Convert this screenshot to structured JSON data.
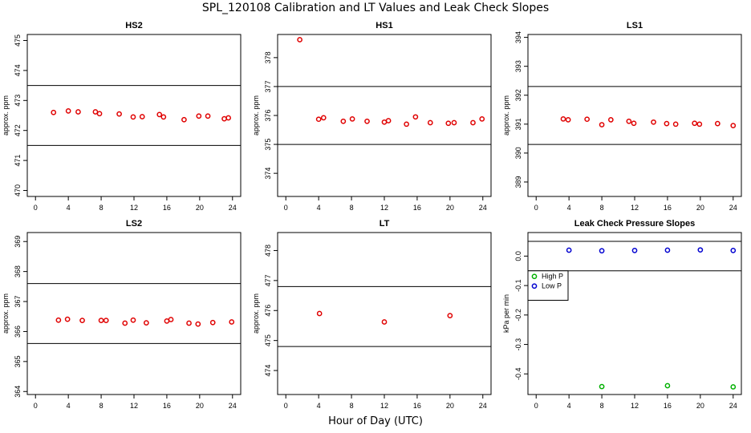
{
  "figure": {
    "title": "SPL_120108  Calibration and LT Values and Leak Check Slopes",
    "xlabel": "Hour of Day (UTC)"
  },
  "colors": {
    "red": "#e00000",
    "green": "#00b000",
    "blue": "#0000d0",
    "axis": "#000000"
  },
  "chart_data": [
    {
      "type": "scatter",
      "title": "HS2",
      "ylabel": "approx. ppm",
      "xlim": [
        -1,
        25
      ],
      "ylim": [
        469.8,
        475.2
      ],
      "xticks": [
        0,
        4,
        8,
        12,
        16,
        20,
        24
      ],
      "yticks": [
        470,
        471,
        472,
        473,
        474,
        475
      ],
      "hlines": [
        473.5,
        471.5
      ],
      "series": [
        {
          "color": "red",
          "x": [
            2.2,
            4.0,
            5.2,
            7.3,
            7.8,
            10.2,
            11.9,
            13.0,
            15.1,
            15.6,
            18.1,
            19.9,
            21.0,
            23.0,
            23.5
          ],
          "y": [
            472.6,
            472.65,
            472.62,
            472.62,
            472.56,
            472.55,
            472.45,
            472.46,
            472.53,
            472.45,
            472.36,
            472.48,
            472.48,
            472.39,
            472.42
          ]
        }
      ]
    },
    {
      "type": "scatter",
      "title": "HS1",
      "ylabel": "approx. ppm",
      "xlim": [
        -1,
        25
      ],
      "ylim": [
        373.2,
        378.8
      ],
      "xticks": [
        0,
        4,
        8,
        12,
        16,
        20,
        24
      ],
      "yticks": [
        374,
        375,
        376,
        377,
        378
      ],
      "hlines": [
        377.0,
        375.0
      ],
      "series": [
        {
          "color": "red",
          "x": [
            1.7,
            4.0,
            4.6,
            7.0,
            8.1,
            9.9,
            12.0,
            12.5,
            14.7,
            15.8,
            17.6,
            19.8,
            20.5,
            22.8,
            23.9
          ],
          "y": [
            378.62,
            375.87,
            375.92,
            375.8,
            375.88,
            375.8,
            375.77,
            375.82,
            375.7,
            375.95,
            375.75,
            375.73,
            375.75,
            375.75,
            375.88
          ]
        }
      ]
    },
    {
      "type": "scatter",
      "title": "LS1",
      "ylabel": "approx. ppm",
      "xlim": [
        -1,
        25
      ],
      "ylim": [
        388.5,
        394.1
      ],
      "xticks": [
        0,
        4,
        8,
        12,
        16,
        20,
        24
      ],
      "yticks": [
        389,
        390,
        391,
        392,
        393,
        394
      ],
      "hlines": [
        392.3,
        390.3
      ],
      "series": [
        {
          "color": "red",
          "x": [
            3.3,
            3.9,
            6.2,
            8.0,
            9.1,
            11.3,
            11.9,
            14.3,
            15.9,
            17.0,
            19.3,
            19.9,
            22.1,
            24.0
          ],
          "y": [
            391.18,
            391.15,
            391.17,
            390.98,
            391.15,
            391.1,
            391.03,
            391.07,
            391.02,
            391.0,
            391.03,
            391.0,
            391.02,
            390.95
          ]
        }
      ]
    },
    {
      "type": "scatter",
      "title": "LS2",
      "ylabel": "approx. ppm",
      "xlim": [
        -1,
        25
      ],
      "ylim": [
        363.9,
        369.3
      ],
      "xticks": [
        0,
        4,
        8,
        12,
        16,
        20,
        24
      ],
      "yticks": [
        364,
        365,
        366,
        367,
        368,
        369
      ],
      "hlines": [
        367.6,
        365.6
      ],
      "series": [
        {
          "color": "red",
          "x": [
            2.8,
            3.9,
            5.7,
            8.0,
            8.6,
            10.9,
            11.9,
            13.5,
            16.0,
            16.5,
            18.7,
            19.8,
            21.6,
            23.9
          ],
          "y": [
            366.38,
            366.41,
            366.37,
            366.37,
            366.37,
            366.28,
            366.38,
            366.29,
            366.35,
            366.4,
            366.28,
            366.25,
            366.3,
            366.32
          ]
        }
      ]
    },
    {
      "type": "scatter",
      "title": "LT",
      "ylabel": "approx. ppm",
      "xlim": [
        -1,
        25
      ],
      "ylim": [
        473.2,
        478.6
      ],
      "xticks": [
        0,
        4,
        8,
        12,
        16,
        20,
        24
      ],
      "yticks": [
        474,
        475,
        476,
        477,
        478
      ],
      "hlines": [
        476.8,
        474.8
      ],
      "series": [
        {
          "color": "red",
          "x": [
            4.1,
            12.0,
            20.0
          ],
          "y": [
            475.9,
            475.62,
            475.83
          ]
        }
      ]
    },
    {
      "type": "scatter",
      "title": "Leak Check Pressure Slopes",
      "ylabel": "kPa per min",
      "xlim": [
        -1,
        25
      ],
      "ylim": [
        -0.47,
        0.08
      ],
      "xticks": [
        0,
        4,
        8,
        12,
        16,
        20,
        24
      ],
      "yticks": [
        0.0,
        -0.1,
        -0.2,
        -0.3,
        -0.4
      ],
      "hlines": [
        0.05,
        -0.05
      ],
      "legend": {
        "position": "left",
        "entries": [
          {
            "label": "High P",
            "color": "green"
          },
          {
            "label": "Low P",
            "color": "blue"
          }
        ]
      },
      "series": [
        {
          "name": "High P",
          "color": "green",
          "x": [
            8.0,
            16.0,
            24.0
          ],
          "y": [
            -0.443,
            -0.44,
            -0.444
          ]
        },
        {
          "name": "Low P",
          "color": "blue",
          "x": [
            4.0,
            8.0,
            12.0,
            16.0,
            20.0,
            24.0
          ],
          "y": [
            0.02,
            0.018,
            0.019,
            0.02,
            0.021,
            0.019
          ]
        }
      ]
    }
  ]
}
